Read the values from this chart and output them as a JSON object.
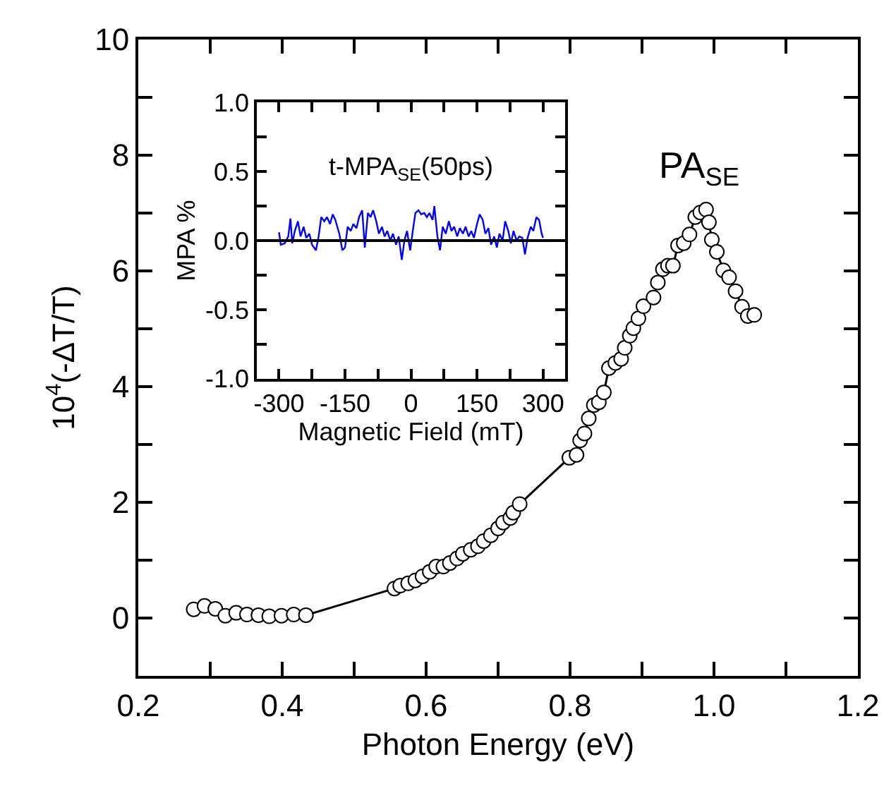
{
  "chart_data": [
    {
      "type": "line",
      "xlabel": "Photon Energy (eV)",
      "ylabel": "10$^{4}$(-ΔT/T)",
      "marker": "circle",
      "line_style": "solid",
      "grid": false,
      "annotations": [
        "PA$_{SE}$"
      ],
      "xlim": [
        0.2,
        1.2
      ],
      "xticks": [
        0.2,
        {
          "value": 0.3,
          "label": null
        },
        0.4,
        {
          "value": 0.5,
          "label": null
        },
        0.6,
        {
          "value": 0.7,
          "label": null
        },
        0.8,
        {
          "value": 0.9,
          "label": null
        },
        {
          "value": 1.0,
          "label": "1.0"
        },
        {
          "value": 1.1,
          "label": null
        },
        1.2
      ],
      "ylim": [
        -1,
        10
      ],
      "yticks": [
        {
          "value": -1,
          "label": null
        },
        0,
        {
          "value": 1,
          "label": null
        },
        2,
        {
          "value": 3,
          "label": null
        },
        4,
        {
          "value": 5,
          "label": null
        },
        6,
        {
          "value": 7,
          "label": null
        },
        8,
        {
          "value": 9,
          "label": null
        },
        10
      ],
      "series": [
        {
          "color": "#000000",
          "x": [
            0.277,
            0.292,
            0.307,
            0.321,
            0.336,
            0.351,
            0.367,
            0.382,
            0.399,
            0.416,
            0.433,
            0.556,
            0.564,
            0.575,
            0.585,
            0.595,
            0.605,
            0.614,
            0.624,
            0.633,
            0.643,
            0.651,
            0.662,
            0.672,
            0.68,
            0.69,
            0.7,
            0.707,
            0.717,
            0.721,
            0.73,
            0.799,
            0.809,
            0.814,
            0.82,
            0.826,
            0.833,
            0.84,
            0.847,
            0.854,
            0.863,
            0.871,
            0.876,
            0.883,
            0.888,
            0.895,
            0.902,
            0.916,
            0.922,
            0.929,
            0.936,
            0.943,
            0.95,
            0.958,
            0.966,
            0.974,
            0.981,
            0.989,
            0.993,
            0.997,
            1.004,
            1.013,
            1.021,
            1.03,
            1.039,
            1.047,
            1.056
          ],
          "values": [
            0.15,
            0.21,
            0.16,
            0.04,
            0.09,
            0.06,
            0.05,
            0.03,
            0.04,
            0.06,
            0.05,
            0.51,
            0.56,
            0.6,
            0.65,
            0.72,
            0.8,
            0.89,
            0.89,
            0.95,
            1.03,
            1.11,
            1.18,
            1.24,
            1.33,
            1.43,
            1.55,
            1.65,
            1.73,
            1.82,
            1.97,
            2.77,
            2.82,
            3.07,
            3.19,
            3.45,
            3.68,
            3.73,
            3.9,
            4.32,
            4.41,
            4.48,
            4.67,
            4.88,
            5.01,
            5.18,
            5.39,
            5.54,
            5.8,
            6.03,
            6.09,
            6.09,
            6.44,
            6.48,
            6.63,
            6.93,
            7.01,
            7.06,
            6.84,
            6.54,
            6.33,
            6.01,
            5.89,
            5.65,
            5.38,
            5.22,
            5.24
          ]
        }
      ]
    },
    {
      "type": "line",
      "title": "t-MPA$_{SE}$(50ps)",
      "xlabel": "Magnetic Field (mT)",
      "ylabel": "MPA %",
      "marker": "none",
      "line_style": "solid",
      "grid": false,
      "xlim": [
        -350,
        350
      ],
      "xticks": [
        -300,
        {
          "value": -225,
          "label": null
        },
        -150,
        {
          "value": -75,
          "label": null
        },
        0,
        {
          "value": 75,
          "label": null
        },
        150,
        {
          "value": 225,
          "label": null
        },
        300
      ],
      "ylim": [
        -1.0,
        1.0
      ],
      "yticks": [
        {
          "value": -1.0,
          "label": "-1.0"
        },
        {
          "value": -0.75,
          "label": null
        },
        {
          "value": -0.5,
          "label": "-0.5"
        },
        {
          "value": -0.25,
          "label": null
        },
        {
          "value": 0,
          "label": "0.0"
        },
        {
          "value": 0.25,
          "label": null
        },
        {
          "value": 0.5,
          "label": "0.5"
        },
        {
          "value": 0.75,
          "label": null
        },
        {
          "value": 1.0,
          "label": "1.0"
        }
      ],
      "ref_lines": [
        {
          "axis": "y",
          "value": 0,
          "color": "#000000"
        }
      ],
      "series": [
        {
          "color": "#0000ff",
          "x": [
            -300,
            -296,
            -287,
            -279,
            -274,
            -270,
            -264,
            -257,
            -251,
            -244,
            -238,
            -231,
            -225,
            -216,
            -210,
            -204,
            -197,
            -191,
            -184,
            -178,
            -172,
            -163,
            -156,
            -150,
            -144,
            -137,
            -131,
            -124,
            -118,
            -111,
            -105,
            -98,
            -92,
            -86,
            -79,
            -73,
            -66,
            -60,
            -54,
            -47,
            -41,
            -34,
            -28,
            -21,
            -15,
            -9,
            -2,
            4,
            10,
            17,
            23,
            30,
            36,
            42,
            49,
            53,
            60,
            66,
            72,
            79,
            86,
            92,
            98,
            105,
            111,
            118,
            124,
            131,
            137,
            143,
            150,
            156,
            163,
            169,
            176,
            182,
            189,
            195,
            201,
            208,
            214,
            221,
            227,
            233,
            240,
            246,
            253,
            259,
            265,
            272,
            278,
            285,
            291,
            297,
            300
          ],
          "values": [
            0.06,
            -0.03,
            -0.02,
            0.03,
            0.16,
            -0.02,
            0.07,
            0.14,
            0.03,
            0.1,
            0.02,
            0.05,
            -0.03,
            -0.07,
            0.03,
            0.17,
            0.14,
            0.17,
            0.12,
            0.19,
            0.15,
            0.05,
            -0.07,
            -0.05,
            0.1,
            0.07,
            0.12,
            0.09,
            0.17,
            0.22,
            -0.05,
            0.2,
            0.17,
            0.22,
            0.14,
            0.05,
            0.1,
            0.03,
            0.07,
            0.0,
            0.05,
            -0.03,
            0.03,
            -0.14,
            0.0,
            0.07,
            -0.07,
            0.07,
            0.2,
            0.22,
            0.19,
            0.2,
            0.17,
            0.2,
            0.15,
            0.25,
            0.03,
            -0.07,
            0.1,
            0.05,
            0.14,
            0.07,
            0.1,
            0.03,
            0.09,
            0.05,
            0.1,
            0.03,
            0.07,
            0.02,
            0.12,
            0.19,
            0.15,
            0.05,
            0.09,
            -0.03,
            0.03,
            -0.05,
            0.05,
            0.0,
            0.14,
            0.07,
            -0.02,
            0.07,
            0.0,
            0.03,
            0.02,
            -0.1,
            0.02,
            0.1,
            0.07,
            0.17,
            0.15,
            0.05,
            0.02
          ]
        }
      ]
    }
  ]
}
